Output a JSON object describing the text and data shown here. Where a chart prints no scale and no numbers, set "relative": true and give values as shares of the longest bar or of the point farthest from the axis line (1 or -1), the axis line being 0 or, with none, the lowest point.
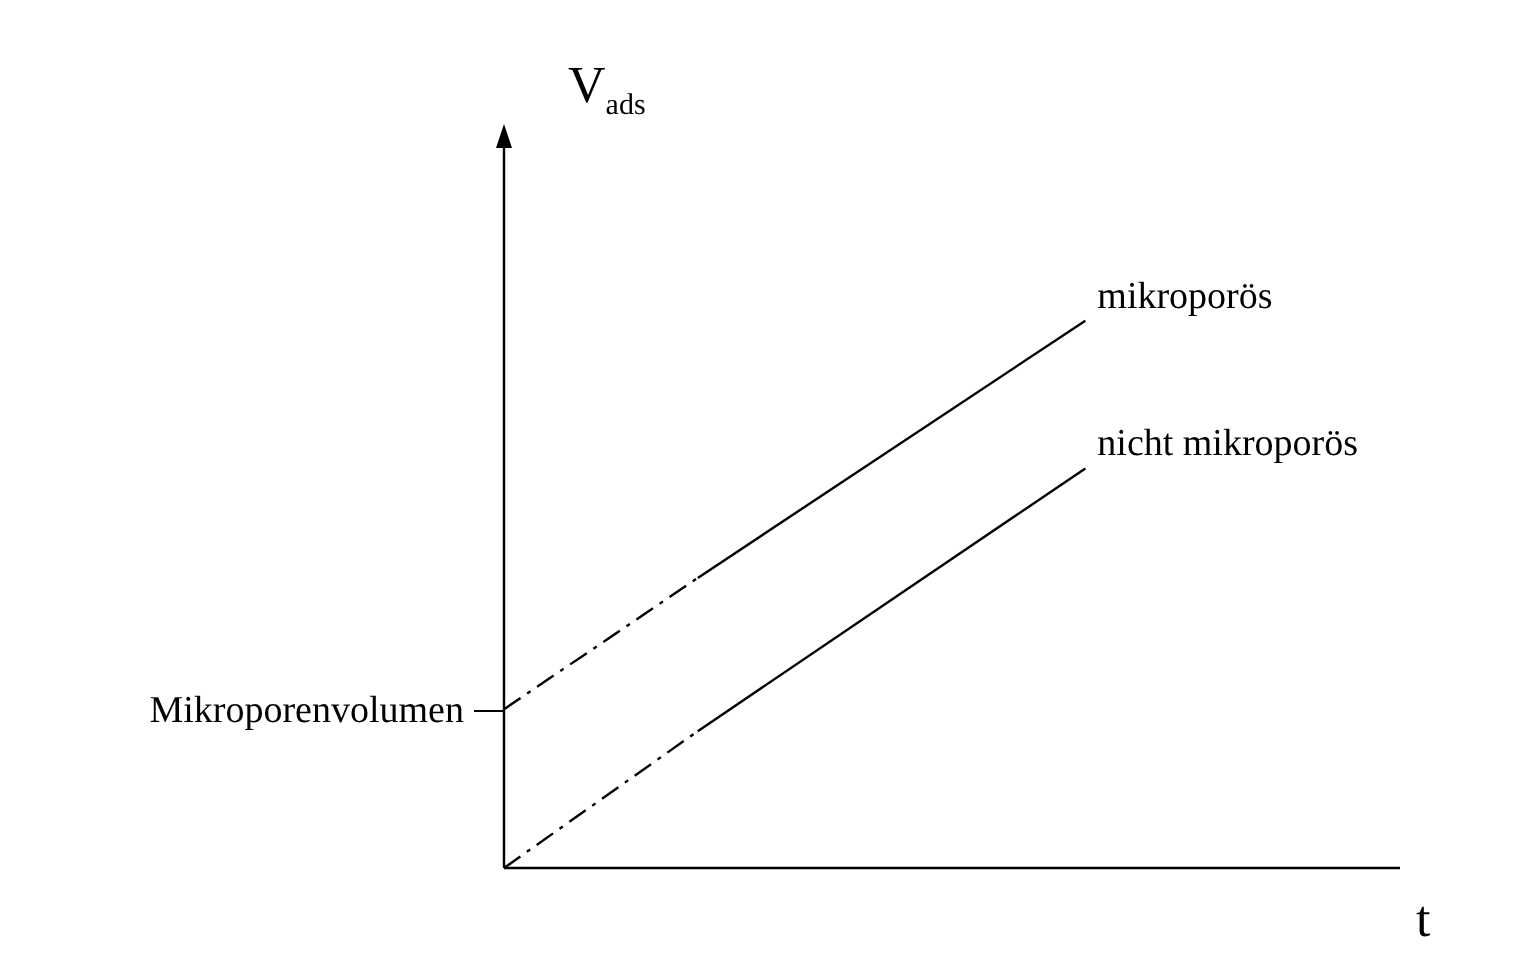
{
  "chart_data": {
    "type": "line",
    "xlabel": "t",
    "ylabel": "V$_{ads}$",
    "relative": true,
    "categories": [
      null,
      null,
      null,
      null,
      null,
      null,
      null,
      null,
      null,
      null
    ],
    "series": [
      {
        "name": "mikroporös",
        "color": "#000000",
        "values": [
          null,
          null,
          0.53,
          null,
          null,
          null,
          1,
          null,
          null,
          null
        ]
      },
      {
        "color": "#000000",
        "line_style": "dashed",
        "values": [
          0.29,
          null,
          0.53,
          null,
          null,
          null,
          null,
          null,
          null,
          null
        ]
      },
      {
        "name": "nicht mikroporös",
        "color": "#000000",
        "values": [
          null,
          null,
          0.25,
          null,
          null,
          null,
          0.73,
          null,
          null,
          null
        ]
      },
      {
        "color": "#000000",
        "line_style": "dashed",
        "values": [
          0,
          null,
          0.25,
          null,
          null,
          null,
          null,
          null,
          null,
          null
        ]
      }
    ],
    "annotations": [
      "Mikroporenvolumen"
    ],
    "legend": false
  }
}
